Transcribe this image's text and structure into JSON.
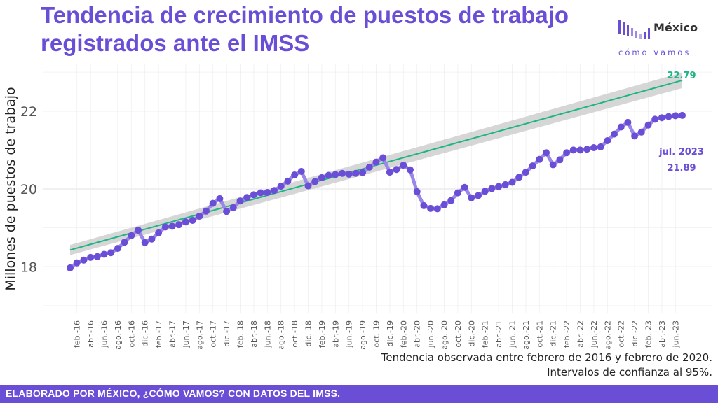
{
  "title": "Tendencia de crecimiento de puestos de trabajo registrados ante el IMSS",
  "logo": {
    "name": "México",
    "subtitle": "cómo vamos",
    "icon": "bars-logo-icon"
  },
  "colors": {
    "accent": "#6a4fd6",
    "series": "#6a4fd6",
    "trend": "#1db586",
    "band": "#cfcfcf",
    "footer_bg": "#6a4fd6",
    "grid": "#e9e9e9"
  },
  "notes": {
    "line1": "Tendencia observada entre febrero de 2016 y febrero de 2020.",
    "line2": "Intervalos de confianza al 95%."
  },
  "footer": {
    "text": "ELABORADO POR MÉXICO, ¿CÓMO VAMOS? CON DATOS DEL IMSS."
  },
  "chart_data": {
    "type": "line",
    "ylabel": "Millones de puestos de trabajo",
    "ylim": [
      16.8,
      23.2
    ],
    "yticks": [
      18,
      20,
      22
    ],
    "grid": true,
    "x_labels": [
      "feb.-16",
      "abr.-16",
      "jun.-16",
      "ago.-16",
      "oct.-16",
      "dic.-16",
      "feb.-17",
      "abr.-17",
      "jun.-17",
      "ago.-17",
      "oct.-17",
      "dic.-17",
      "feb.-18",
      "abr.-18",
      "jun.-18",
      "ago.-18",
      "oct.-18",
      "dic.-18",
      "feb.-19",
      "abr.-19",
      "jun.-19",
      "ago.-19",
      "oct.-19",
      "dic.-19",
      "feb.-20",
      "abr.-20",
      "jun.-20",
      "ago.-20",
      "oct.-20",
      "dic.-20",
      "feb.-21",
      "abr.-21",
      "jun.-21",
      "ago.-21",
      "oct.-21",
      "dic.-21",
      "feb.-22",
      "abr.-22",
      "jun.-22",
      "ago.-22",
      "oct.-22",
      "dic.-22",
      "feb.-23",
      "abr.-23",
      "jun.-23"
    ],
    "series": [
      {
        "name": "",
        "x_start": "ene.-16",
        "values": [
          17.97,
          18.1,
          18.17,
          18.24,
          18.26,
          18.32,
          18.36,
          18.47,
          18.63,
          18.8,
          18.94,
          18.62,
          18.71,
          18.87,
          19.02,
          19.04,
          19.08,
          19.15,
          19.19,
          19.3,
          19.43,
          19.63,
          19.75,
          19.42,
          19.52,
          19.69,
          19.78,
          19.85,
          19.9,
          19.91,
          19.96,
          20.07,
          20.2,
          20.36,
          20.45,
          20.08,
          20.19,
          20.29,
          20.35,
          20.37,
          20.4,
          20.38,
          20.4,
          20.42,
          20.56,
          20.69,
          20.8,
          20.43,
          20.5,
          20.61,
          20.49,
          19.93,
          19.57,
          19.5,
          19.49,
          19.59,
          19.7,
          19.9,
          20.04,
          19.77,
          19.83,
          19.94,
          20.01,
          20.06,
          20.11,
          20.17,
          20.3,
          20.43,
          20.59,
          20.76,
          20.93,
          20.62,
          20.75,
          20.93,
          21.0,
          21.0,
          21.02,
          21.06,
          21.08,
          21.24,
          21.41,
          21.59,
          21.71,
          21.36,
          21.46,
          21.64,
          21.79,
          21.83,
          21.86,
          21.88,
          21.89
        ]
      }
    ],
    "trend": {
      "name": "Tendencia",
      "start_value": 18.43,
      "end_value": 22.79,
      "end_label": "22.79",
      "ci_start": [
        18.3,
        18.56
      ],
      "ci_end": [
        22.59,
        22.99
      ]
    },
    "annotations": [
      {
        "text": "jul. 2023",
        "x": "jul.-23",
        "y": 21.89
      },
      {
        "text": "21.89",
        "x": "jul.-23",
        "y": 21.89
      }
    ]
  }
}
